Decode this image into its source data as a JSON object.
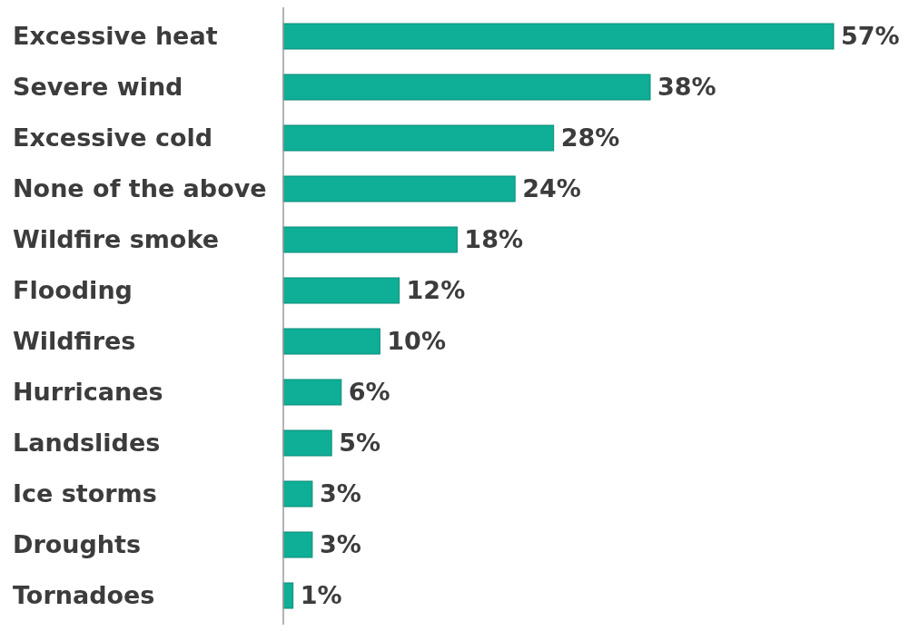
{
  "chart_data": {
    "type": "bar",
    "orientation": "horizontal",
    "categories": [
      "Excessive heat",
      "Severe wind",
      "Excessive cold",
      "None of the above",
      "Wildfire smoke",
      "Flooding",
      "Wildfires",
      "Hurricanes",
      "Landslides",
      "Ice storms",
      "Droughts",
      "Tornadoes"
    ],
    "values": [
      57,
      38,
      28,
      24,
      18,
      12,
      10,
      6,
      5,
      3,
      3,
      1
    ],
    "value_labels": [
      "57%",
      "38%",
      "28%",
      "24%",
      "18%",
      "12%",
      "10%",
      "6%",
      "5%",
      "3%",
      "3%",
      "1%"
    ],
    "color": "#0fae96"
  }
}
